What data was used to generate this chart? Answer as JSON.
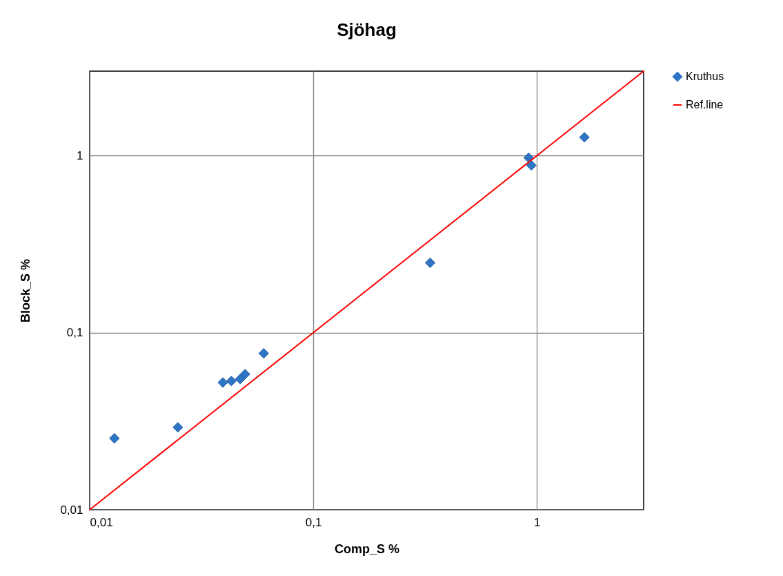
{
  "chart_data": {
    "type": "scatter",
    "title": "Sjöhag",
    "xlabel": "Comp_S  %",
    "ylabel": "Block_S %",
    "log": "xy",
    "grid": true,
    "legend": "right",
    "xlim": [
      0.01,
      3
    ],
    "ylim": [
      0.01,
      3
    ],
    "xticks": [
      {
        "value": 0.01,
        "label": "0,01"
      },
      {
        "value": 0.1,
        "label": "0,1"
      },
      1
    ],
    "yticks": [
      {
        "value": 0.01,
        "label": "0,01"
      },
      {
        "value": 0.1,
        "label": "0,1"
      },
      1
    ],
    "series": [
      {
        "name": "Kruthus",
        "marker": "diamond",
        "color": "#2e75c6",
        "x": [
          0.0129,
          0.0248,
          0.0394,
          0.043,
          0.0471,
          0.0495,
          0.06,
          0.333,
          0.918,
          0.944,
          1.63
        ],
        "values": [
          0.0253,
          0.0292,
          0.0523,
          0.0533,
          0.0547,
          0.0583,
          0.0764,
          0.248,
          0.973,
          0.881,
          1.27
        ]
      },
      {
        "name": "Ref.line",
        "type": "line",
        "color": "#ff0000",
        "x": [
          0.01,
          3
        ],
        "values": [
          0.01,
          3
        ]
      }
    ]
  }
}
